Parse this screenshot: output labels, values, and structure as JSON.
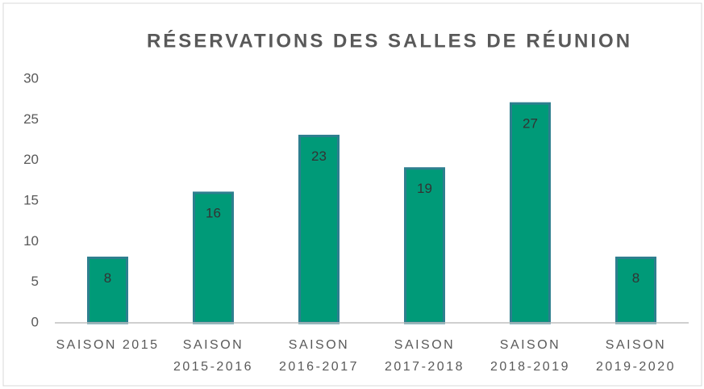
{
  "chart_data": {
    "type": "bar",
    "title": "RÉSERVATIONS DES SALLES DE RÉUNION",
    "categories": [
      "SAISON 2015",
      "SAISON 2015-2016",
      "SAISON 2016-2017",
      "SAISON 2017-2018",
      "SAISON 2018-2019",
      "SAISON 2019-2020"
    ],
    "values": [
      8,
      16,
      23,
      19,
      27,
      8
    ],
    "color": "#009a78",
    "ylim": [
      0,
      30
    ],
    "yticks": [
      0,
      5,
      10,
      15,
      20,
      25,
      30
    ],
    "grid": false
  }
}
